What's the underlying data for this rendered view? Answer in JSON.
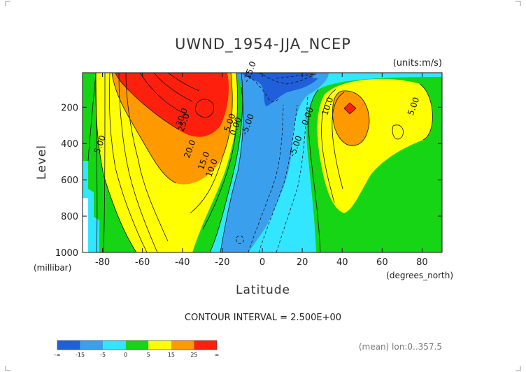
{
  "chart_data": {
    "type": "contour",
    "title": "UWND_1954-JJA_NCEP",
    "units_label": "(units:m/s)",
    "xlabel": "Latitude",
    "ylabel": "Level",
    "x_units_label": "(degrees_north)",
    "y_units_label": "(millibar)",
    "xlim": [
      -90,
      90
    ],
    "ylim": [
      1000,
      10
    ],
    "x_ticks": [
      -80,
      -60,
      -40,
      -20,
      0,
      20,
      40,
      60,
      80
    ],
    "y_ticks": [
      200,
      400,
      600,
      800,
      1000
    ],
    "contour_interval_text": "CONTOUR INTERVAL = 2.500E+00",
    "subtitle_right": "(mean) lon:0..357.5",
    "colorbar": {
      "colors": [
        "#1f5fd9",
        "#3aa0ee",
        "#33e6ff",
        "#15d515",
        "#ffff00",
        "#ff9900",
        "#ff1f0d"
      ],
      "tick_labels": [
        "-∞",
        "-15",
        "-5",
        "0",
        "5",
        "15",
        "25",
        "∞"
      ]
    },
    "features": {
      "southern_jet": {
        "lat": -31,
        "level": 200,
        "max_label": "30.0"
      },
      "northern_jet": {
        "lat": 43,
        "level": 200,
        "max_label": "10.0"
      },
      "easterly_core": {
        "lat": 0,
        "level": 100,
        "min_label": "-15.0"
      }
    },
    "contour_labels": [
      {
        "text": "5.00",
        "lat": -80,
        "level": 410
      },
      {
        "text": "30.0",
        "lat": -39,
        "level": 260
      },
      {
        "text": "25.0",
        "lat": -38,
        "level": 290
      },
      {
        "text": "20.0",
        "lat": -35,
        "level": 435
      },
      {
        "text": "15.0",
        "lat": -28,
        "level": 500
      },
      {
        "text": "10.0",
        "lat": -24,
        "level": 540
      },
      {
        "text": "5.00",
        "lat": -15,
        "level": 290
      },
      {
        "text": "0.00",
        "lat": -12,
        "level": 310
      },
      {
        "text": "-5.00",
        "lat": -6,
        "level": 300
      },
      {
        "text": "-15.0",
        "lat": -5,
        "level": 10
      },
      {
        "text": "0.00",
        "lat": 24,
        "level": 255
      },
      {
        "text": "-5.00",
        "lat": 18,
        "level": 420
      },
      {
        "text": "10.0",
        "lat": 34,
        "level": 200
      },
      {
        "text": "5.00",
        "lat": 77,
        "level": 200
      }
    ]
  }
}
